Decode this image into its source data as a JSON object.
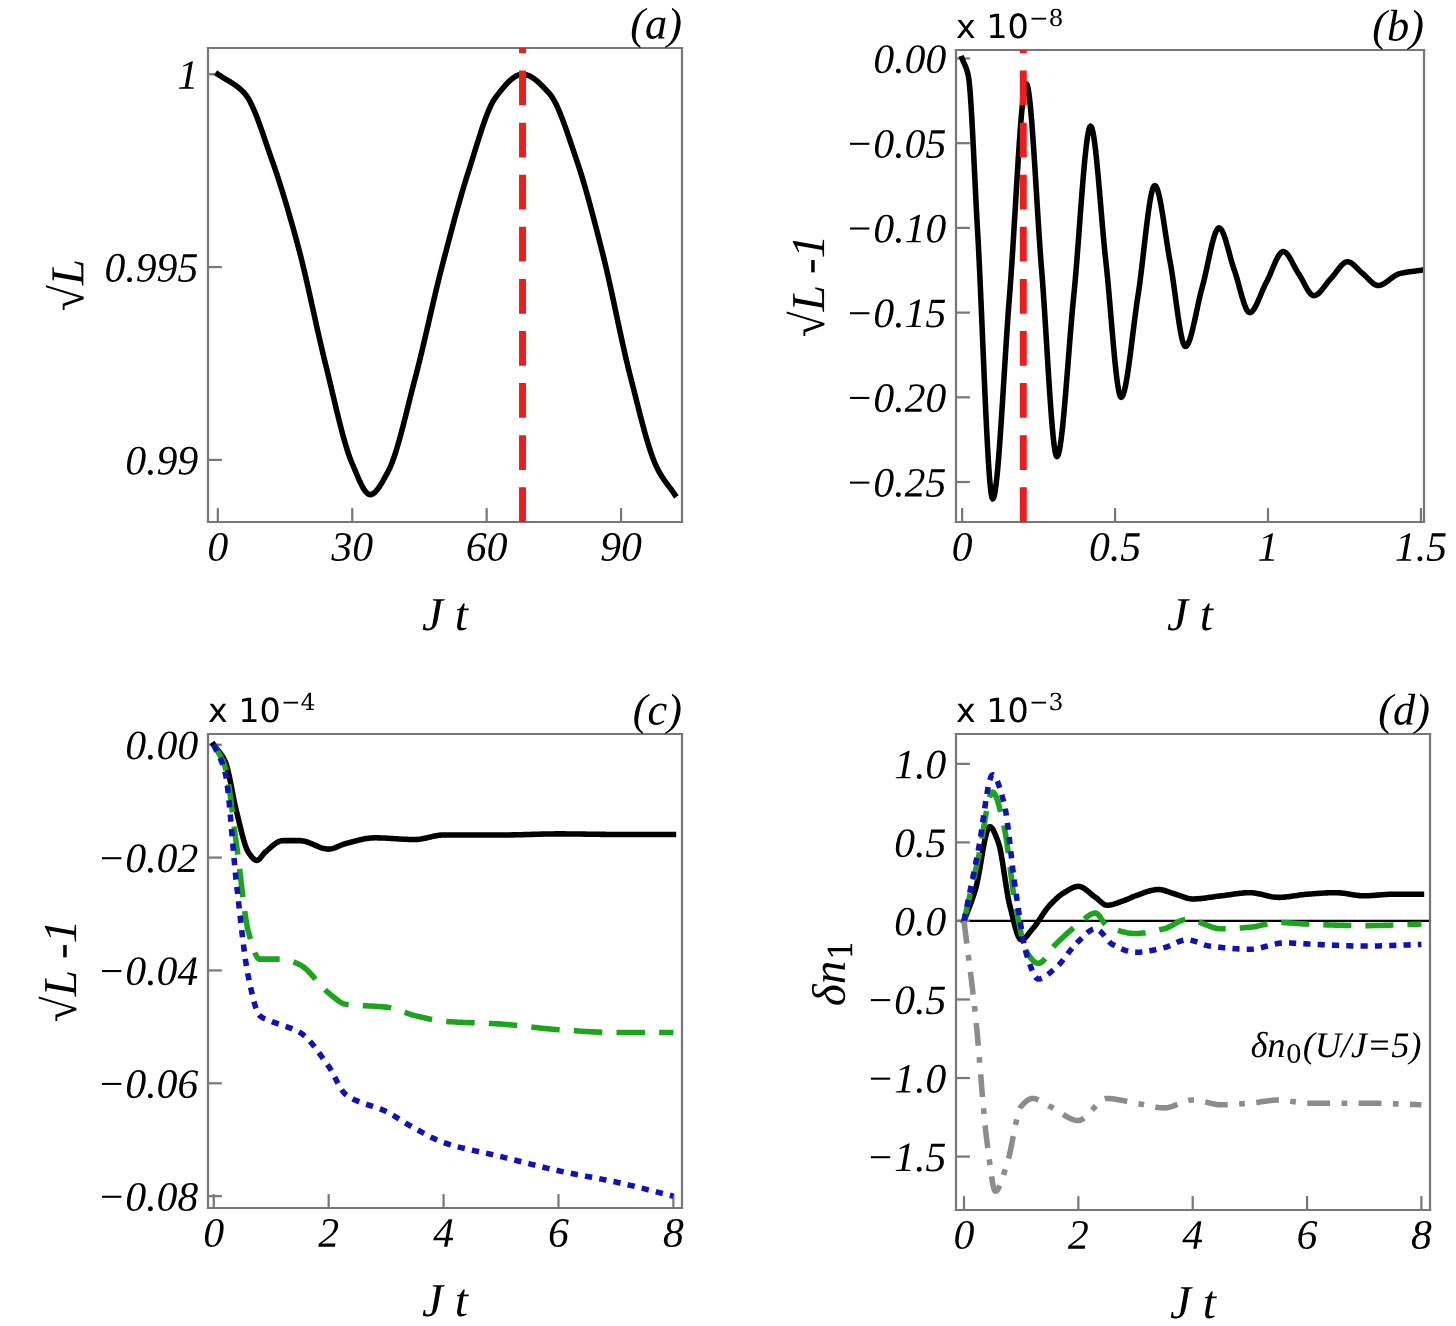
{
  "chart_data": [
    {
      "type": "line",
      "title": "(a)",
      "xlabel": "J t",
      "ylabel": "√L",
      "xlim": [
        -2.2,
        103.6
      ],
      "ylim": [
        0.98839,
        1.00068
      ],
      "xticks": [
        0,
        30,
        60,
        90
      ],
      "yticks": [
        {
          "value": 1,
          "label": "1"
        },
        0.995,
        0.99
      ],
      "grid": false,
      "legend": false,
      "series": [
        {
          "color": "#000000",
          "line_style": "solid",
          "x": [
            0,
            6,
            12,
            18,
            24,
            30,
            34,
            38,
            44,
            50,
            56,
            62,
            68,
            74,
            80,
            86,
            92,
            98,
            102
          ],
          "values": [
            1.0,
            0.9995,
            0.9978,
            0.9955,
            0.9925,
            0.9899,
            0.9891,
            0.9897,
            0.9921,
            0.995,
            0.9975,
            0.9994,
            1.0,
            0.9995,
            0.9978,
            0.9953,
            0.9922,
            0.9898,
            0.9891
          ]
        }
      ],
      "ref_lines": [
        {
          "axis": "x",
          "value": 68,
          "color": "#ee1c1c",
          "line_style": "dashed"
        }
      ]
    },
    {
      "type": "line",
      "title": "(b)",
      "xlabel": "J t",
      "ylabel": "√L -1",
      "annotations": [
        "x 10$^{−8}$"
      ],
      "xlim": [
        -0.02,
        1.51
      ],
      "ylim": [
        -0.2736,
        0.005
      ],
      "xticks": [
        0,
        0.5,
        1,
        1.5
      ],
      "yticks": [
        {
          "value": 0,
          "label": "0.00"
        },
        {
          "value": -0.05,
          "label": "−0.05"
        },
        {
          "value": -0.1,
          "label": "−0.10"
        },
        {
          "value": -0.15,
          "label": "−0.15"
        },
        {
          "value": -0.2,
          "label": "−0.20"
        },
        {
          "value": -0.25,
          "label": "−0.25"
        }
      ],
      "grid": false,
      "legend": false,
      "series": [
        {
          "color": "#000000",
          "line_style": "solid",
          "x": [
            0,
            0.02,
            0.05,
            0.1,
            0.155,
            0.21,
            0.26,
            0.31,
            0.365,
            0.42,
            0.47,
            0.52,
            0.575,
            0.63,
            0.68,
            0.73,
            0.785,
            0.84,
            0.89,
            0.94,
            0.995,
            1.05,
            1.1,
            1.15,
            1.205,
            1.26,
            1.31,
            1.36,
            1.43,
            1.5
          ],
          "values": [
            0,
            -0.01,
            -0.1,
            -0.26,
            -0.14,
            -0.015,
            -0.125,
            -0.235,
            -0.14,
            -0.04,
            -0.12,
            -0.2,
            -0.14,
            -0.075,
            -0.12,
            -0.17,
            -0.135,
            -0.1,
            -0.125,
            -0.15,
            -0.132,
            -0.114,
            -0.127,
            -0.14,
            -0.13,
            -0.12,
            -0.127,
            -0.134,
            -0.127,
            -0.125
          ]
        }
      ],
      "ref_lines": [
        {
          "axis": "x",
          "value": 0.2,
          "color": "#ee1c1c",
          "line_style": "dashed"
        }
      ]
    },
    {
      "type": "line",
      "title": "(c)",
      "xlabel": "J t",
      "ylabel": "√L -1",
      "annotations": [
        "x 10$^{−4}$"
      ],
      "xlim": [
        -0.1,
        8.15
      ],
      "ylim": [
        -0.0821,
        0.0019
      ],
      "xticks": [
        0,
        2,
        4,
        6,
        8
      ],
      "yticks": [
        {
          "value": 0,
          "label": "0.00"
        },
        {
          "value": -0.02,
          "label": "−0.02"
        },
        {
          "value": -0.04,
          "label": "−0.04"
        },
        {
          "value": -0.06,
          "label": "−0.06"
        },
        {
          "value": -0.08,
          "label": "−0.08"
        }
      ],
      "grid": false,
      "legend": false,
      "series": [
        {
          "color": "#000000",
          "line_style": "solid",
          "x": [
            0,
            0.2,
            0.4,
            0.6,
            0.75,
            0.9,
            1.2,
            1.5,
            2.0,
            2.3,
            2.8,
            3.5,
            4,
            5,
            6,
            7,
            8
          ],
          "values": [
            0,
            -0.003,
            -0.012,
            -0.019,
            -0.0205,
            -0.019,
            -0.017,
            -0.017,
            -0.0185,
            -0.0175,
            -0.0165,
            -0.0168,
            -0.016,
            -0.016,
            -0.0158,
            -0.0159,
            -0.0159
          ]
        },
        {
          "color": "#1aa51a",
          "line_style": "dashed",
          "x": [
            0,
            0.2,
            0.4,
            0.6,
            0.8,
            1.2,
            1.5,
            2.0,
            2.3,
            3,
            3.5,
            4,
            5,
            6,
            7,
            8
          ],
          "values": [
            0,
            -0.004,
            -0.018,
            -0.033,
            -0.038,
            -0.038,
            -0.039,
            -0.044,
            -0.046,
            -0.0465,
            -0.048,
            -0.049,
            -0.0495,
            -0.0505,
            -0.051,
            -0.051
          ]
        },
        {
          "color": "#1010c0",
          "line_style": "dotted",
          "x": [
            0,
            0.2,
            0.4,
            0.6,
            0.8,
            1.0,
            1.5,
            2.0,
            2.3,
            3,
            3.5,
            4,
            5,
            6,
            7,
            8
          ],
          "values": [
            0,
            -0.005,
            -0.025,
            -0.041,
            -0.048,
            -0.049,
            -0.051,
            -0.057,
            -0.062,
            -0.065,
            -0.068,
            -0.0705,
            -0.073,
            -0.0755,
            -0.0775,
            -0.08
          ]
        }
      ]
    },
    {
      "type": "line",
      "title": "(d)",
      "xlabel": "J t",
      "ylabel": "δn$_{1}$",
      "annotations": [
        "x 10$^{−3}$"
      ],
      "xlim": [
        -0.14,
        8.15
      ],
      "ylim": [
        -1.84,
        1.19
      ],
      "xticks": [
        0,
        2,
        4,
        6,
        8
      ],
      "yticks": [
        {
          "value": 1,
          "label": "1.0"
        },
        {
          "value": 0.5,
          "label": "0.5"
        },
        {
          "value": 0,
          "label": "0.0"
        },
        {
          "value": -0.5,
          "label": "−0.5"
        },
        {
          "value": -1,
          "label": "−1.0"
        },
        {
          "value": -1.5,
          "label": "−1.5"
        }
      ],
      "grid": false,
      "legend": false,
      "series": [
        {
          "color": "#000000",
          "line_style": "solid",
          "x": [
            0,
            0.2,
            0.45,
            0.6,
            0.8,
            1.0,
            1.2,
            1.5,
            1.75,
            2.0,
            2.3,
            2.5,
            2.8,
            3.0,
            3.4,
            3.7,
            4.0,
            4.5,
            5,
            5.5,
            6,
            6.5,
            7,
            7.5,
            8
          ],
          "values": [
            0,
            0.2,
            0.6,
            0.5,
            0.1,
            -0.12,
            -0.05,
            0.1,
            0.18,
            0.22,
            0.15,
            0.1,
            0.13,
            0.16,
            0.2,
            0.17,
            0.14,
            0.16,
            0.18,
            0.15,
            0.17,
            0.18,
            0.16,
            0.17,
            0.17
          ]
        },
        {
          "color": "#1aa51a",
          "line_style": "dashed",
          "x": [
            0,
            0.25,
            0.5,
            0.7,
            0.9,
            1.1,
            1.3,
            1.6,
            2.0,
            2.3,
            2.5,
            3,
            3.5,
            3.9,
            4.5,
            5,
            5.5,
            6,
            7,
            8
          ],
          "values": [
            0,
            0.4,
            0.82,
            0.6,
            0.1,
            -0.2,
            -0.27,
            -0.15,
            -0.02,
            0.05,
            -0.03,
            -0.08,
            -0.05,
            0.01,
            -0.05,
            -0.04,
            -0.01,
            -0.02,
            -0.03,
            -0.02
          ]
        },
        {
          "color": "#1010c0",
          "line_style": "dotted",
          "x": [
            0,
            0.25,
            0.5,
            0.7,
            0.9,
            1.1,
            1.3,
            1.6,
            2.0,
            2.3,
            2.6,
            3.0,
            3.5,
            3.9,
            4.3,
            5,
            5.6,
            6.2,
            7,
            8
          ],
          "values": [
            0,
            0.45,
            0.93,
            0.75,
            0.2,
            -0.22,
            -0.37,
            -0.3,
            -0.13,
            -0.05,
            -0.15,
            -0.2,
            -0.17,
            -0.12,
            -0.16,
            -0.18,
            -0.14,
            -0.15,
            -0.16,
            -0.15
          ]
        },
        {
          "name": "δn$_{0}$(U/J=5)",
          "color": "#8c8c8c",
          "line_style": "dashdot",
          "x": [
            0,
            0.2,
            0.4,
            0.55,
            0.75,
            1.0,
            1.2,
            1.5,
            2.0,
            2.5,
            3,
            3.5,
            4,
            4.5,
            5,
            5.5,
            6,
            7,
            8
          ],
          "values": [
            0,
            -0.6,
            -1.4,
            -1.72,
            -1.55,
            -1.18,
            -1.13,
            -1.18,
            -1.27,
            -1.13,
            -1.16,
            -1.19,
            -1.14,
            -1.17,
            -1.16,
            -1.14,
            -1.16,
            -1.16,
            -1.17
          ]
        }
      ],
      "ref_lines": [
        {
          "axis": "y",
          "value": 0,
          "color": "#000000",
          "line_style": "solid"
        }
      ]
    }
  ]
}
